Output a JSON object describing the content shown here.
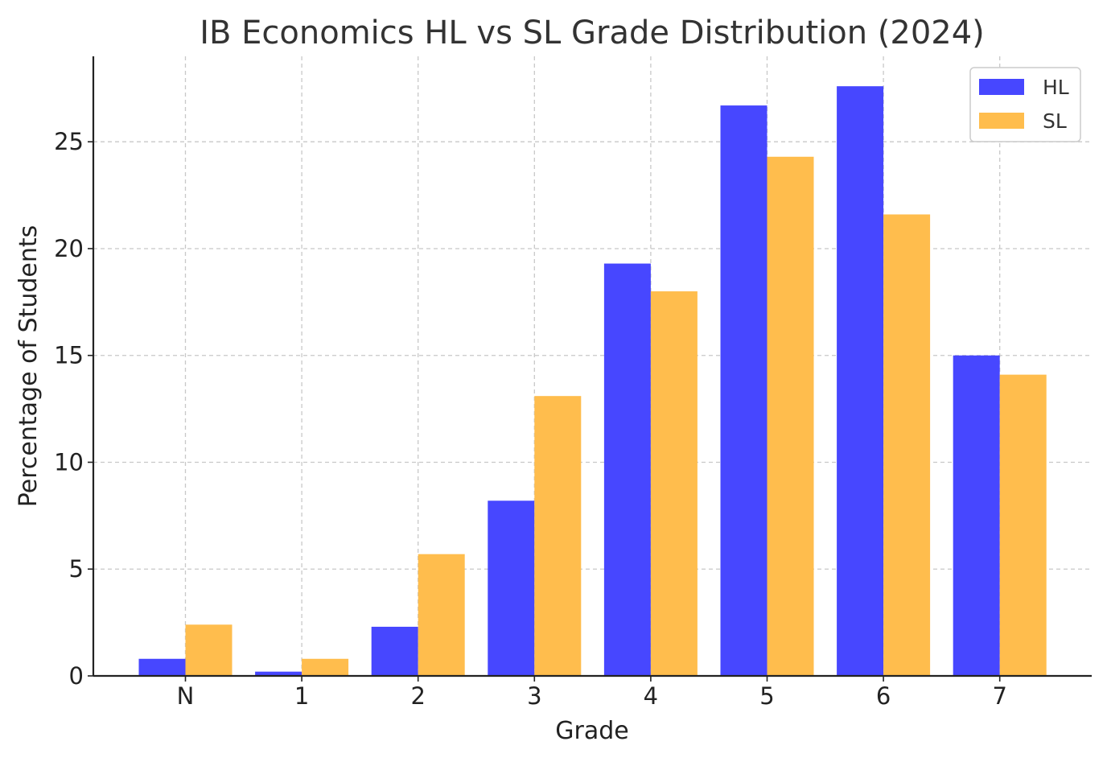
{
  "chart_data": {
    "type": "bar",
    "title": "IB Economics HL vs SL Grade Distribution (2024)",
    "xlabel": "Grade",
    "ylabel": "Percentage of Students",
    "categories": [
      "N",
      "1",
      "2",
      "3",
      "4",
      "5",
      "6",
      "7"
    ],
    "series": [
      {
        "name": "HL",
        "color": "#4747FF",
        "values": [
          0.8,
          0.2,
          2.3,
          8.2,
          19.3,
          26.7,
          27.6,
          15.0
        ]
      },
      {
        "name": "SL",
        "color": "#FFBD4D",
        "values": [
          2.4,
          0.8,
          5.7,
          13.1,
          18.0,
          24.3,
          21.6,
          14.1
        ]
      }
    ],
    "ylim": [
      0,
      29
    ],
    "yticks": [
      0,
      5,
      10,
      15,
      20,
      25
    ],
    "grid": true,
    "legend_position": "top-right"
  }
}
